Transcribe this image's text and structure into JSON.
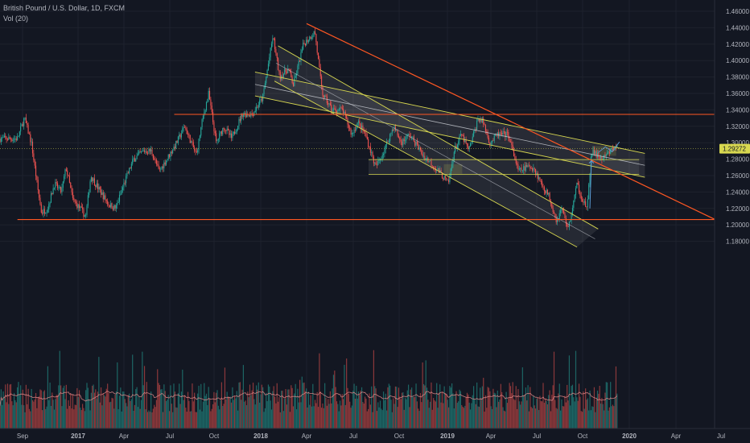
{
  "legend": {
    "symbol": "British Pound / U.S. Dollar, 1D, FXCM",
    "volume": "Vol (20)"
  },
  "colors": {
    "background": "#131722",
    "grid": "#1e222d",
    "up": "#26a69a",
    "down": "#ef5350",
    "trend_red": "#ff5722",
    "channel_yellow": "#d8d850",
    "axis_text": "#b2b5be"
  },
  "chart_data": {
    "type": "candlestick",
    "title": "British Pound / U.S. Dollar, 1D, FXCM",
    "ylim": [
      1.17,
      1.46
    ],
    "y_ticks": [
      "1.46000",
      "1.44000",
      "1.42000",
      "1.40000",
      "1.38000",
      "1.36000",
      "1.34000",
      "1.32000",
      "1.30000",
      "1.28000",
      "1.26000",
      "1.24000",
      "1.22000",
      "1.20000",
      "1.18000"
    ],
    "x_ticks": [
      "Sep",
      "2017",
      "Apr",
      "Jul",
      "Oct",
      "2018",
      "Apr",
      "Jul",
      "Oct",
      "2019",
      "Apr",
      "Jul",
      "Oct",
      "2020",
      "Apr",
      "Jul"
    ],
    "current_price": "1.29272",
    "price_path": [
      [
        "2016-08-20",
        1.305
      ],
      [
        "2016-09-05",
        1.33
      ],
      [
        "2016-09-20",
        1.3
      ],
      [
        "2016-10-05",
        1.24
      ],
      [
        "2016-10-12",
        1.215
      ],
      [
        "2016-10-25",
        1.22
      ],
      [
        "2016-11-10",
        1.25
      ],
      [
        "2016-11-25",
        1.24
      ],
      [
        "2016-12-05",
        1.27
      ],
      [
        "2016-12-20",
        1.23
      ],
      [
        "2017-01-05",
        1.22
      ],
      [
        "2017-01-16",
        1.21
      ],
      [
        "2017-01-26",
        1.26
      ],
      [
        "2017-02-10",
        1.245
      ],
      [
        "2017-03-01",
        1.225
      ],
      [
        "2017-03-15",
        1.22
      ],
      [
        "2017-04-01",
        1.25
      ],
      [
        "2017-04-20",
        1.28
      ],
      [
        "2017-05-10",
        1.29
      ],
      [
        "2017-05-25",
        1.29
      ],
      [
        "2017-06-10",
        1.265
      ],
      [
        "2017-06-25",
        1.28
      ],
      [
        "2017-07-15",
        1.3
      ],
      [
        "2017-08-01",
        1.32
      ],
      [
        "2017-08-25",
        1.285
      ],
      [
        "2017-09-08",
        1.33
      ],
      [
        "2017-09-20",
        1.36
      ],
      [
        "2017-10-05",
        1.3
      ],
      [
        "2017-10-20",
        1.32
      ],
      [
        "2017-11-05",
        1.305
      ],
      [
        "2017-11-25",
        1.335
      ],
      [
        "2017-12-15",
        1.335
      ],
      [
        "2018-01-05",
        1.355
      ],
      [
        "2018-01-25",
        1.43
      ],
      [
        "2018-02-08",
        1.38
      ],
      [
        "2018-02-25",
        1.39
      ],
      [
        "2018-03-05",
        1.37
      ],
      [
        "2018-03-25",
        1.42
      ],
      [
        "2018-04-17",
        1.435
      ],
      [
        "2018-05-01",
        1.36
      ],
      [
        "2018-05-20",
        1.34
      ],
      [
        "2018-06-10",
        1.34
      ],
      [
        "2018-06-28",
        1.31
      ],
      [
        "2018-07-10",
        1.325
      ],
      [
        "2018-07-25",
        1.31
      ],
      [
        "2018-08-15",
        1.27
      ],
      [
        "2018-09-01",
        1.29
      ],
      [
        "2018-09-20",
        1.32
      ],
      [
        "2018-10-05",
        1.3
      ],
      [
        "2018-10-20",
        1.31
      ],
      [
        "2018-11-01",
        1.3
      ],
      [
        "2018-11-15",
        1.285
      ],
      [
        "2018-12-01",
        1.275
      ],
      [
        "2018-12-15",
        1.265
      ],
      [
        "2019-01-03",
        1.25
      ],
      [
        "2019-01-15",
        1.29
      ],
      [
        "2019-01-30",
        1.31
      ],
      [
        "2019-02-15",
        1.29
      ],
      [
        "2019-03-05",
        1.33
      ],
      [
        "2019-03-15",
        1.325
      ],
      [
        "2019-03-29",
        1.3
      ],
      [
        "2019-04-15",
        1.31
      ],
      [
        "2019-05-05",
        1.31
      ],
      [
        "2019-05-25",
        1.265
      ],
      [
        "2019-06-10",
        1.27
      ],
      [
        "2019-06-25",
        1.27
      ],
      [
        "2019-07-10",
        1.25
      ],
      [
        "2019-07-25",
        1.235
      ],
      [
        "2019-08-10",
        1.205
      ],
      [
        "2019-08-20",
        1.22
      ],
      [
        "2019-09-03",
        1.195
      ],
      [
        "2019-09-20",
        1.25
      ],
      [
        "2019-10-01",
        1.23
      ],
      [
        "2019-10-10",
        1.22
      ],
      [
        "2019-10-18",
        1.29
      ],
      [
        "2019-10-28",
        1.285
      ],
      [
        "2019-11-10",
        1.28
      ],
      [
        "2019-11-25",
        1.29
      ],
      [
        "2019-12-05",
        1.295
      ]
    ],
    "horizontal_levels": [
      1.3345,
      1.2065
    ],
    "red_trend_line": {
      "from": [
        "2018-04-01",
        1.445
      ],
      "to": [
        "2020-07-15",
        1.199
      ]
    },
    "volume_note": "Volume histogram with 20-period moving average along the bottom"
  }
}
